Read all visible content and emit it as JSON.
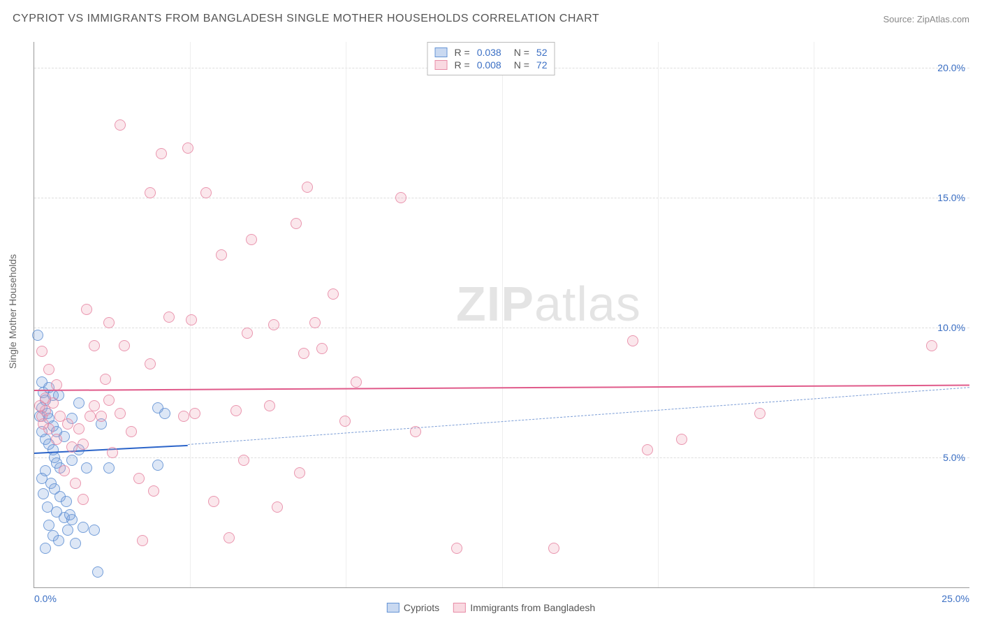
{
  "title": "CYPRIOT VS IMMIGRANTS FROM BANGLADESH SINGLE MOTHER HOUSEHOLDS CORRELATION CHART",
  "source": "Source: ZipAtlas.com",
  "watermark_a": "ZIP",
  "watermark_b": "atlas",
  "ylabel": "Single Mother Households",
  "chart": {
    "type": "scatter",
    "background_color": "#ffffff",
    "grid_color": "#dddddd",
    "axis_color": "#999999",
    "xlim": [
      0,
      25
    ],
    "ylim": [
      0,
      21
    ],
    "xticks": [
      0,
      25
    ],
    "xtick_labels": [
      "0.0%",
      "25.0%"
    ],
    "yticks": [
      5,
      10,
      15,
      20
    ],
    "ytick_labels": [
      "5.0%",
      "10.0%",
      "15.0%",
      "20.0%"
    ],
    "xgrid": [
      4.17,
      8.33,
      12.5,
      16.67,
      20.83
    ],
    "marker_size": 16,
    "series": [
      {
        "name": "Cypriots",
        "color_fill": "rgba(120,160,220,0.25)",
        "color_stroke": "#5a8cd2",
        "R": "0.038",
        "N": "52",
        "trend": {
          "solid_from": [
            0,
            5.2
          ],
          "solid_to": [
            4.1,
            5.5
          ],
          "dash_to": [
            25,
            7.7
          ],
          "color": "#2b64c9"
        },
        "points": [
          [
            0.1,
            9.7
          ],
          [
            0.2,
            7.9
          ],
          [
            0.25,
            7.5
          ],
          [
            0.3,
            7.2
          ],
          [
            0.2,
            6.9
          ],
          [
            0.35,
            6.7
          ],
          [
            0.15,
            6.6
          ],
          [
            0.4,
            6.5
          ],
          [
            0.4,
            7.7
          ],
          [
            0.5,
            7.4
          ],
          [
            0.65,
            7.4
          ],
          [
            0.2,
            6.0
          ],
          [
            0.3,
            5.7
          ],
          [
            0.4,
            5.5
          ],
          [
            0.5,
            5.3
          ],
          [
            0.55,
            5.0
          ],
          [
            0.6,
            4.8
          ],
          [
            0.7,
            4.6
          ],
          [
            0.3,
            4.5
          ],
          [
            0.2,
            4.2
          ],
          [
            0.45,
            4.0
          ],
          [
            0.55,
            3.8
          ],
          [
            0.25,
            3.6
          ],
          [
            0.7,
            3.5
          ],
          [
            0.85,
            3.3
          ],
          [
            0.35,
            3.1
          ],
          [
            0.6,
            2.9
          ],
          [
            0.8,
            2.7
          ],
          [
            1.0,
            2.6
          ],
          [
            0.4,
            2.4
          ],
          [
            0.9,
            2.2
          ],
          [
            0.5,
            2.0
          ],
          [
            0.65,
            1.8
          ],
          [
            1.1,
            1.7
          ],
          [
            0.3,
            1.5
          ],
          [
            0.95,
            2.8
          ],
          [
            1.2,
            5.3
          ],
          [
            1.4,
            4.6
          ],
          [
            1.3,
            2.3
          ],
          [
            1.0,
            4.9
          ],
          [
            1.6,
            2.2
          ],
          [
            1.2,
            7.1
          ],
          [
            1.8,
            6.3
          ],
          [
            2.0,
            4.6
          ],
          [
            3.3,
            6.9
          ],
          [
            3.5,
            6.7
          ],
          [
            3.3,
            4.7
          ],
          [
            1.7,
            0.6
          ],
          [
            1.0,
            6.5
          ],
          [
            0.8,
            5.8
          ],
          [
            0.5,
            6.2
          ],
          [
            0.6,
            6.0
          ]
        ]
      },
      {
        "name": "Immigrants from Bangladesh",
        "color_fill": "rgba(240,160,180,0.25)",
        "color_stroke": "#e682a0",
        "R": "0.008",
        "N": "72",
        "trend": {
          "solid_from": [
            0,
            7.6
          ],
          "solid_to": [
            25,
            7.8
          ],
          "color": "#e05a8a"
        },
        "points": [
          [
            0.2,
            9.1
          ],
          [
            0.4,
            8.4
          ],
          [
            0.6,
            7.8
          ],
          [
            0.5,
            7.1
          ],
          [
            0.3,
            6.8
          ],
          [
            0.7,
            6.6
          ],
          [
            0.9,
            6.3
          ],
          [
            0.6,
            5.7
          ],
          [
            1.0,
            5.4
          ],
          [
            1.3,
            5.5
          ],
          [
            1.2,
            6.1
          ],
          [
            1.5,
            6.6
          ],
          [
            1.8,
            6.6
          ],
          [
            1.6,
            7.0
          ],
          [
            2.0,
            7.2
          ],
          [
            1.9,
            8.0
          ],
          [
            1.6,
            9.3
          ],
          [
            1.4,
            10.7
          ],
          [
            2.0,
            10.2
          ],
          [
            2.3,
            17.8
          ],
          [
            2.4,
            9.3
          ],
          [
            2.8,
            4.2
          ],
          [
            3.1,
            15.2
          ],
          [
            3.1,
            8.6
          ],
          [
            3.2,
            3.7
          ],
          [
            3.4,
            16.7
          ],
          [
            3.6,
            10.4
          ],
          [
            4.0,
            6.6
          ],
          [
            4.1,
            16.9
          ],
          [
            4.2,
            10.3
          ],
          [
            4.6,
            15.2
          ],
          [
            4.8,
            3.3
          ],
          [
            5.0,
            12.8
          ],
          [
            5.4,
            6.8
          ],
          [
            5.6,
            4.9
          ],
          [
            5.7,
            9.8
          ],
          [
            5.8,
            13.4
          ],
          [
            6.3,
            7.0
          ],
          [
            6.4,
            10.1
          ],
          [
            6.5,
            3.1
          ],
          [
            7.0,
            14.0
          ],
          [
            7.1,
            4.4
          ],
          [
            7.2,
            9.0
          ],
          [
            7.3,
            15.4
          ],
          [
            7.5,
            10.2
          ],
          [
            7.7,
            9.2
          ],
          [
            8.0,
            11.3
          ],
          [
            8.3,
            6.4
          ],
          [
            8.6,
            7.9
          ],
          [
            9.8,
            15.0
          ],
          [
            10.2,
            6.0
          ],
          [
            1.3,
            3.4
          ],
          [
            2.1,
            5.2
          ],
          [
            2.3,
            6.7
          ],
          [
            2.6,
            6.0
          ],
          [
            2.9,
            1.8
          ],
          [
            4.3,
            6.7
          ],
          [
            5.2,
            1.9
          ],
          [
            11.3,
            1.5
          ],
          [
            13.9,
            1.5
          ],
          [
            16.0,
            9.5
          ],
          [
            16.4,
            5.3
          ],
          [
            17.3,
            5.7
          ],
          [
            19.4,
            6.7
          ],
          [
            24.0,
            9.3
          ],
          [
            0.4,
            6.1
          ],
          [
            0.2,
            6.6
          ],
          [
            0.3,
            7.3
          ],
          [
            0.15,
            7.0
          ],
          [
            0.25,
            6.3
          ],
          [
            0.8,
            4.5
          ],
          [
            1.1,
            4.0
          ]
        ]
      }
    ]
  },
  "legend_top": {
    "rows": [
      {
        "swatch": "s1",
        "r_label": "R =",
        "r_val": "0.038",
        "n_label": "N =",
        "n_val": "52"
      },
      {
        "swatch": "s2",
        "r_label": "R =",
        "r_val": "0.008",
        "n_label": "N =",
        "n_val": "72"
      }
    ]
  },
  "legend_bottom": {
    "items": [
      {
        "swatch": "s1",
        "label": "Cypriots"
      },
      {
        "swatch": "s2",
        "label": "Immigrants from Bangladesh"
      }
    ]
  }
}
